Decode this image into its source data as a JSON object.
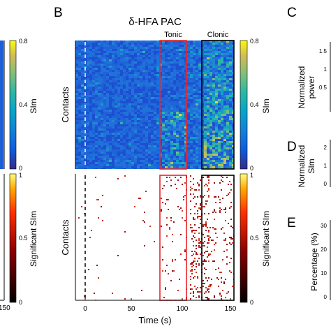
{
  "panel_letters": {
    "b": "B",
    "c": "C",
    "d": "D",
    "e": "E"
  },
  "title": "δ-HFA PAC",
  "windows": {
    "tonic": "Tonic",
    "clonic": "Clonic"
  },
  "y_label": "Contacts",
  "x_label": "Time (s)",
  "x_ticks": [
    "0",
    "50",
    "100",
    "150"
  ],
  "colorbar_top": {
    "label": "SIm",
    "ticks": [
      "0.8",
      "0.4",
      "0"
    ],
    "range": [
      0,
      0.8
    ]
  },
  "colorbar_bottom": {
    "label": "Significant SIm",
    "ticks": [
      "1",
      "0.5",
      "0"
    ],
    "range": [
      0,
      1
    ]
  },
  "left_panel": {
    "colorbar_top": {
      "label": "SIm",
      "ticks": [
        "0.8",
        "0.4",
        "0"
      ]
    },
    "colorbar_bottom": {
      "label": "Significant SIm",
      "ticks": [
        "1",
        "0.5",
        "0"
      ]
    },
    "x_tick_150": "150"
  },
  "panel_c": {
    "ylabel_line1": "Normalized",
    "ylabel_line2": "power",
    "ticks": [
      "1.5",
      "1",
      "0.5"
    ]
  },
  "panel_d": {
    "ylabel_line1": "Normalized",
    "ylabel_line2": "SIm",
    "ticks": [
      "2",
      "1",
      "0"
    ]
  },
  "panel_e": {
    "ylabel": "Percentage (%)",
    "ticks": [
      "30",
      "20",
      "10",
      "0"
    ]
  },
  "colors": {
    "tonic_box": "#e8262b",
    "clonic_box": "#000000",
    "significant": "#a5141c"
  }
}
